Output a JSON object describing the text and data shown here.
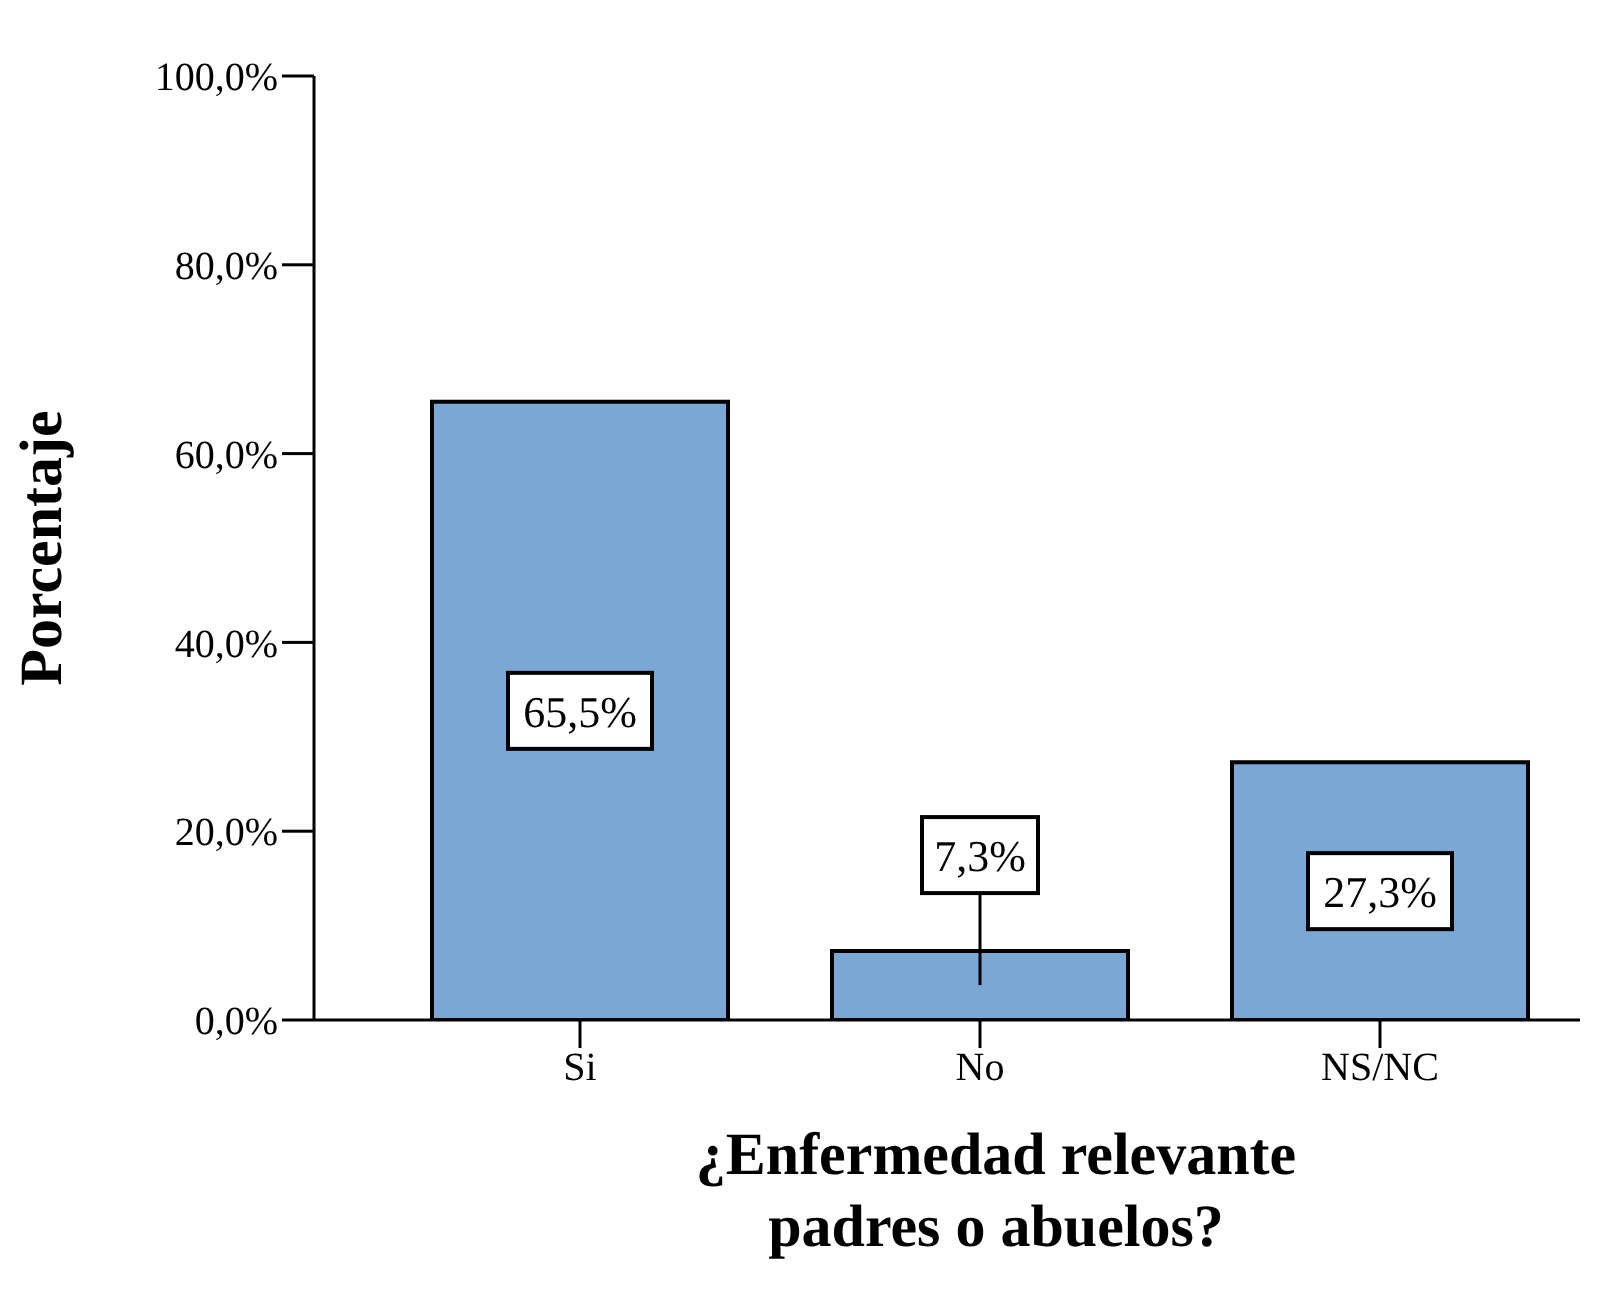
{
  "chart_data": {
    "type": "bar",
    "xlabel": "¿Enfermedad relevante padres o abuelos?",
    "ylabel": "Porcentaje",
    "categories": [
      "Si",
      "No",
      "NS/NC"
    ],
    "values": [
      65.5,
      7.3,
      27.3
    ],
    "value_labels": [
      "65,5%",
      "7,3%",
      "27,3%"
    ],
    "color": "#7ba7d4",
    "ylim": [
      0,
      100
    ],
    "yticks": [
      {
        "value": 0,
        "label": "0,0%"
      },
      {
        "value": 20,
        "label": "20,0%"
      },
      {
        "value": 40,
        "label": "40,0%"
      },
      {
        "value": 60,
        "label": "60,0%"
      },
      {
        "value": 80,
        "label": "80,0%"
      },
      {
        "value": 100,
        "label": "100,0%"
      }
    ],
    "grid": false
  }
}
